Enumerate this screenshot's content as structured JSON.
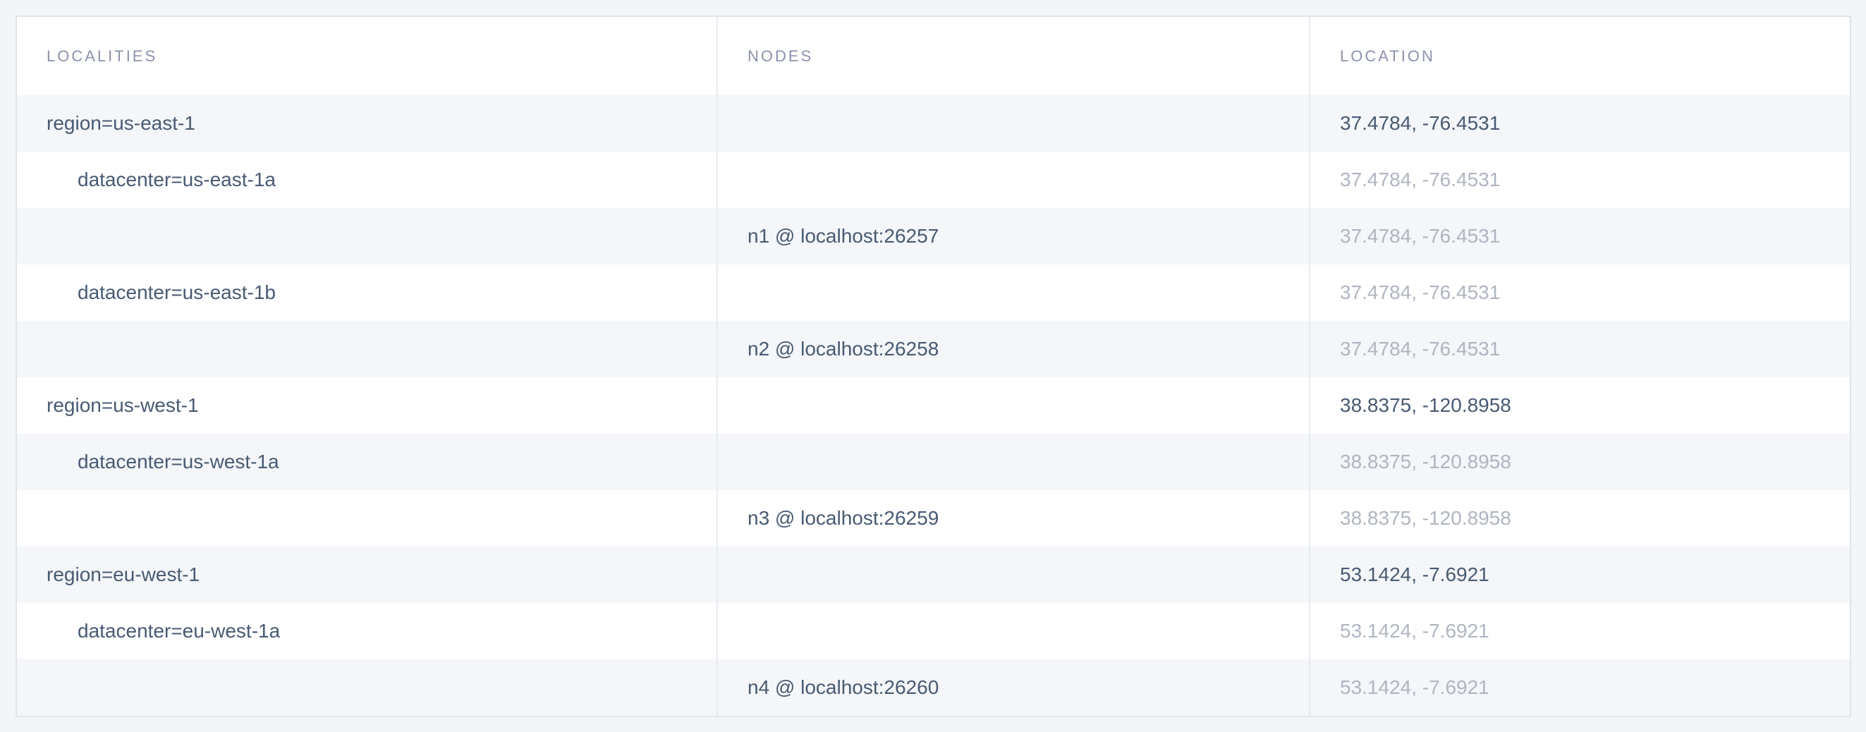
{
  "table": {
    "columns": [
      {
        "key": "localities",
        "label": "LOCALITIES"
      },
      {
        "key": "nodes",
        "label": "NODES"
      },
      {
        "key": "location",
        "label": "LOCATION"
      }
    ],
    "rows": [
      {
        "locality": "region=us-east-1",
        "node": "",
        "location": "37.4784, -76.4531",
        "indent": 0,
        "location_style": "dark"
      },
      {
        "locality": "datacenter=us-east-1a",
        "node": "",
        "location": "37.4784, -76.4531",
        "indent": 1,
        "location_style": "faded"
      },
      {
        "locality": "",
        "node": "n1 @ localhost:26257",
        "location": "37.4784, -76.4531",
        "indent": 0,
        "location_style": "faded"
      },
      {
        "locality": "datacenter=us-east-1b",
        "node": "",
        "location": "37.4784, -76.4531",
        "indent": 1,
        "location_style": "faded"
      },
      {
        "locality": "",
        "node": "n2 @ localhost:26258",
        "location": "37.4784, -76.4531",
        "indent": 0,
        "location_style": "faded"
      },
      {
        "locality": "region=us-west-1",
        "node": "",
        "location": "38.8375, -120.8958",
        "indent": 0,
        "location_style": "dark"
      },
      {
        "locality": "datacenter=us-west-1a",
        "node": "",
        "location": "38.8375, -120.8958",
        "indent": 1,
        "location_style": "faded"
      },
      {
        "locality": "",
        "node": "n3 @ localhost:26259",
        "location": "38.8375, -120.8958",
        "indent": 0,
        "location_style": "faded"
      },
      {
        "locality": "region=eu-west-1",
        "node": "",
        "location": "53.1424, -7.6921",
        "indent": 0,
        "location_style": "dark"
      },
      {
        "locality": "datacenter=eu-west-1a",
        "node": "",
        "location": "53.1424, -7.6921",
        "indent": 1,
        "location_style": "faded"
      },
      {
        "locality": "",
        "node": "n4 @ localhost:26260",
        "location": "53.1424, -7.6921",
        "indent": 0,
        "location_style": "faded"
      }
    ]
  },
  "colors": {
    "page_background": "#f3f5f9",
    "row_stripe": "#f4f6f9",
    "table_background": "#ffffff",
    "border": "#dfe3ea",
    "column_divider": "#e7eaf0",
    "header_text": "#8b92ac",
    "cell_text": "#485a73",
    "faded_location_text": "#afb5c1"
  }
}
